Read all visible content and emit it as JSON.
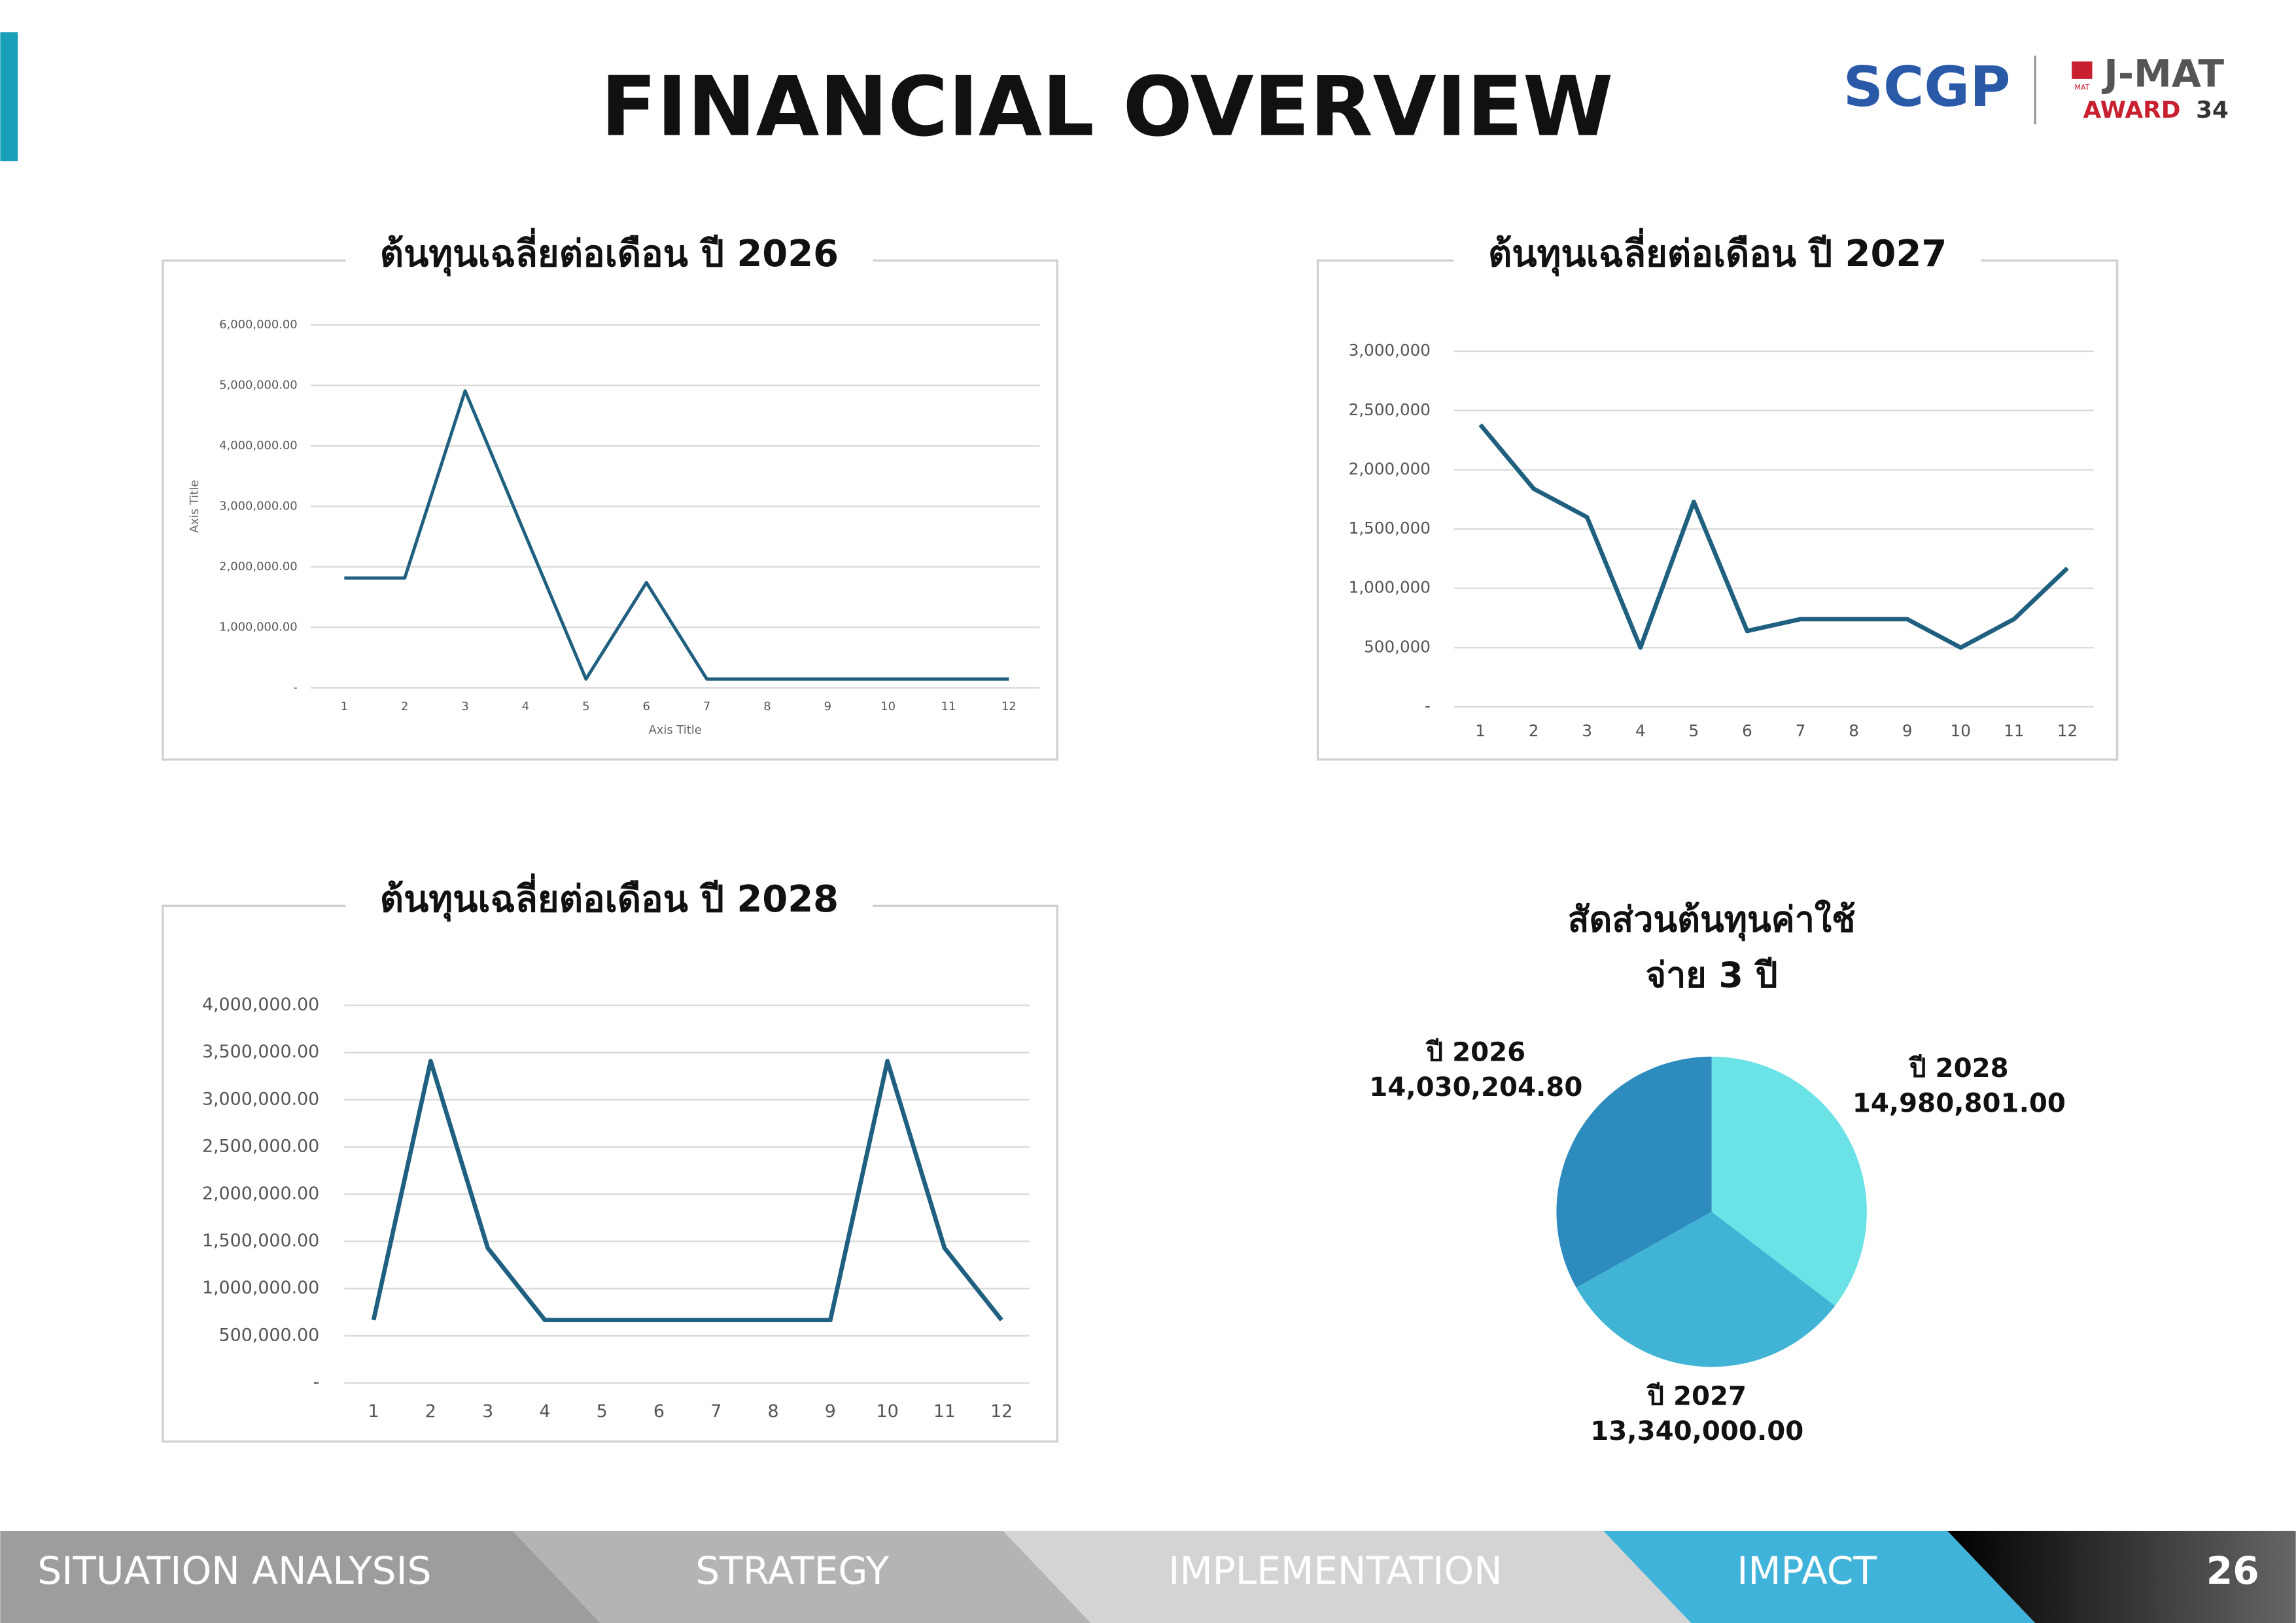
{
  "header": {
    "title": "FINANCIAL OVERVIEW",
    "logo_left": "SCGP",
    "logo_right": "J-MAT",
    "logo_right_small": "MAT",
    "award": "AWARD",
    "award_number": "34"
  },
  "chart_data": [
    {
      "type": "line",
      "title": "ต้นทุนเฉลี่ยต่อเดือน ปี 2026",
      "x_label": "Axis Title",
      "y_label": "Axis Title",
      "categories": [
        "1",
        "2",
        "3",
        "4",
        "5",
        "6",
        "7",
        "8",
        "9",
        "10",
        "11",
        "12"
      ],
      "series": [
        {
          "name": "ปี 2026",
          "color": "#1f5f7f",
          "values": [
            1815000,
            1815000,
            4910000,
            2520000,
            145000,
            1740000,
            145000,
            145000,
            145000,
            145000,
            145000,
            145000
          ]
        }
      ],
      "ylim": [
        0,
        6000000
      ],
      "yticks": [
        {
          "value": 0,
          "label": "-"
        },
        {
          "value": 1000000,
          "label": "1,000,000.00"
        },
        {
          "value": 2000000,
          "label": "2,000,000.00"
        },
        {
          "value": 3000000,
          "label": "3,000,000.00"
        },
        {
          "value": 4000000,
          "label": "4,000,000.00"
        },
        {
          "value": 5000000,
          "label": "5,000,000.00"
        },
        {
          "value": 6000000,
          "label": "6,000,000.00"
        }
      ],
      "grid": true
    },
    {
      "type": "line",
      "title": "ต้นทุนเฉลี่ยต่อเดือน ปี 2027",
      "categories": [
        "1",
        "2",
        "3",
        "4",
        "5",
        "6",
        "7",
        "8",
        "9",
        "10",
        "11",
        "12"
      ],
      "series": [
        {
          "name": "ปี 2027",
          "color": "#1f5f7f",
          "values": [
            2380000,
            1840000,
            1600000,
            500000,
            1730000,
            640000,
            740000,
            740000,
            740000,
            500000,
            740000,
            1170000
          ]
        }
      ],
      "ylim": [
        0,
        3000000
      ],
      "yticks": [
        {
          "value": 0,
          "label": "-"
        },
        {
          "value": 500000,
          "label": "500,000"
        },
        {
          "value": 1000000,
          "label": "1,000,000"
        },
        {
          "value": 1500000,
          "label": "1,500,000"
        },
        {
          "value": 2000000,
          "label": "2,000,000"
        },
        {
          "value": 2500000,
          "label": "2,500,000"
        },
        {
          "value": 3000000,
          "label": "3,000,000"
        }
      ],
      "grid": true
    },
    {
      "type": "line",
      "title": "ต้นทุนเฉลี่ยต่อเดือน ปี 2028",
      "categories": [
        "1",
        "2",
        "3",
        "4",
        "5",
        "6",
        "7",
        "8",
        "9",
        "10",
        "11",
        "12"
      ],
      "series": [
        {
          "name": "ปี 2028",
          "color": "#1f5f7f",
          "values": [
            667000,
            3410000,
            1430000,
            667000,
            667000,
            667000,
            667000,
            667000,
            667000,
            3410000,
            1430000,
            667000
          ]
        }
      ],
      "ylim": [
        0,
        4000000
      ],
      "yticks": [
        {
          "value": 0,
          "label": "-"
        },
        {
          "value": 500000,
          "label": "500,000.00"
        },
        {
          "value": 1000000,
          "label": "1,000,000.00"
        },
        {
          "value": 1500000,
          "label": "1,500,000.00"
        },
        {
          "value": 2000000,
          "label": "2,000,000.00"
        },
        {
          "value": 2500000,
          "label": "2,500,000.00"
        },
        {
          "value": 3000000,
          "label": "3,000,000.00"
        },
        {
          "value": 3500000,
          "label": "3,500,000.00"
        },
        {
          "value": 4000000,
          "label": "4,000,000.00"
        }
      ],
      "grid": true
    },
    {
      "type": "pie",
      "title": [
        "สัดส่วนต้นทุนค่าใช้",
        "จ่าย 3 ปี"
      ],
      "categories": [
        "ปี 2026",
        "ปี 2027",
        "ปี 2028"
      ],
      "values": [
        14030204.8,
        13340000.0,
        14980801.0
      ],
      "value_labels": [
        "14,030,204.80",
        "13,340,000.00",
        "14,980,801.00"
      ],
      "colors": [
        "#2e8bbd",
        "#41b4d6",
        "#6ae2e6"
      ]
    }
  ],
  "footer": {
    "sections": [
      "SITUATION ANALYSIS",
      "STRATEGY",
      "IMPLEMENTATION",
      "IMPACT"
    ],
    "page": "26"
  }
}
